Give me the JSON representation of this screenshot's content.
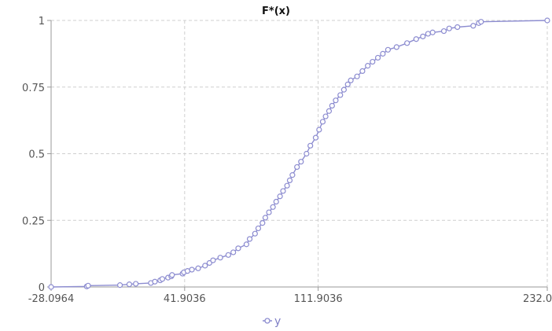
{
  "chart_data": {
    "type": "line",
    "title": "F*(x)",
    "xlabel": "",
    "ylabel": "",
    "xlim": [
      -28.0964,
      232.0116
    ],
    "ylim": [
      0,
      1
    ],
    "x_ticks": [
      "-28.0964",
      "41.9036",
      "111.9036",
      "232.0116"
    ],
    "x_tick_values": [
      -28.0964,
      41.9036,
      111.9036,
      232.0116
    ],
    "y_ticks": [
      "0",
      "0.25",
      "0.5",
      "0.75",
      "1"
    ],
    "y_tick_values": [
      0,
      0.25,
      0.5,
      0.75,
      1
    ],
    "grid": true,
    "legend_position": "bottom",
    "series": [
      {
        "name": "y",
        "color": "#8c8cd0",
        "marker": "open-circle",
        "x": [
          -28.1,
          -9.4,
          -8.7,
          8.0,
          12.9,
          16.3,
          24.2,
          26.3,
          29.1,
          30.2,
          33.2,
          34.9,
          35.3,
          40.8,
          41.5,
          43.4,
          45.7,
          49.0,
          52.6,
          54.9,
          56.8,
          60.6,
          64.8,
          67.4,
          70.0,
          74.3,
          76.0,
          78.8,
          80.5,
          82.7,
          84.2,
          86.1,
          88.2,
          89.9,
          91.9,
          93.5,
          95.6,
          97.0,
          98.4,
          100.8,
          102.9,
          105.8,
          107.8,
          110.6,
          112.4,
          114.3,
          115.8,
          117.6,
          119.2,
          121.1,
          123.5,
          125.4,
          127.4,
          129.0,
          132.3,
          135.1,
          137.9,
          140.4,
          143.2,
          145.8,
          148.5,
          153.0,
          158.5,
          163.3,
          166.8,
          169.5,
          171.9,
          177.8,
          180.6,
          184.9,
          193.2,
          196.1,
          197.3,
          232.0
        ],
        "values": [
          0.0,
          0.002,
          0.005,
          0.007,
          0.01,
          0.012,
          0.015,
          0.02,
          0.025,
          0.03,
          0.035,
          0.04,
          0.045,
          0.05,
          0.055,
          0.06,
          0.065,
          0.07,
          0.08,
          0.09,
          0.1,
          0.11,
          0.12,
          0.13,
          0.145,
          0.16,
          0.18,
          0.2,
          0.22,
          0.24,
          0.26,
          0.28,
          0.3,
          0.32,
          0.34,
          0.36,
          0.38,
          0.4,
          0.42,
          0.45,
          0.47,
          0.5,
          0.53,
          0.56,
          0.59,
          0.62,
          0.64,
          0.66,
          0.68,
          0.7,
          0.72,
          0.74,
          0.76,
          0.775,
          0.79,
          0.81,
          0.83,
          0.845,
          0.86,
          0.875,
          0.89,
          0.9,
          0.915,
          0.93,
          0.94,
          0.95,
          0.955,
          0.96,
          0.97,
          0.975,
          0.98,
          0.99,
          0.995,
          1.0
        ]
      }
    ]
  }
}
